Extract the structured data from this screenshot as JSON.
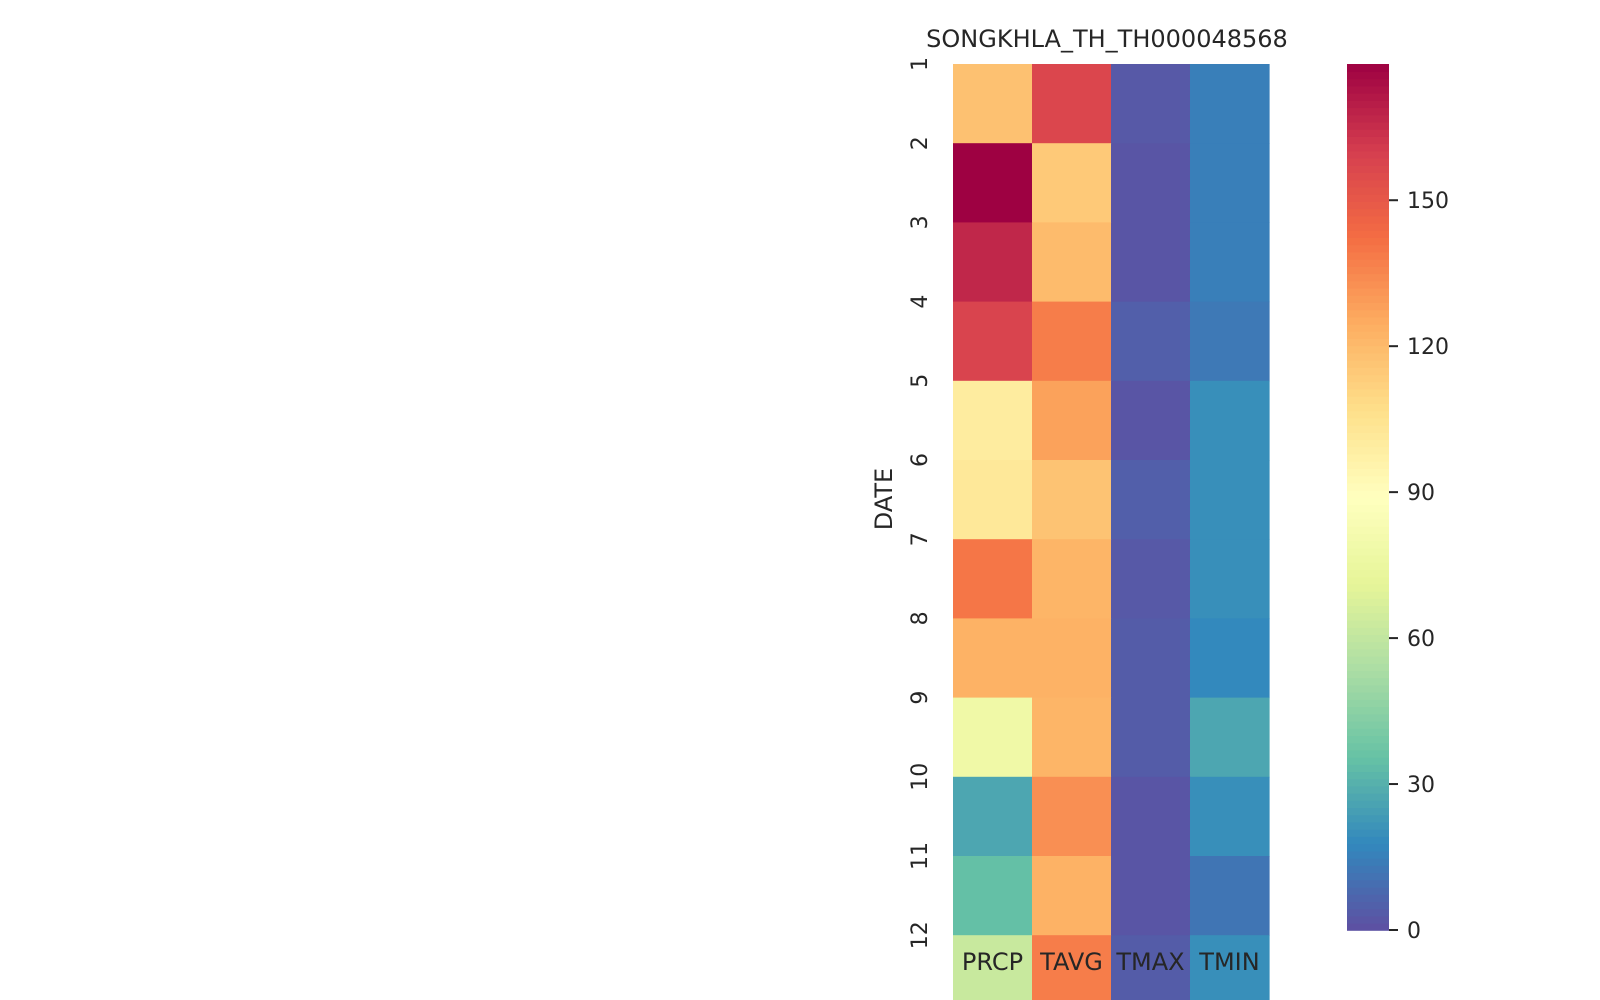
{
  "chart_data": {
    "type": "heatmap",
    "title": "SONGKHLA_TH_TH000048568",
    "ylabel": "DATE",
    "xlabel": "",
    "x_categories": [
      "PRCP",
      "TAVG",
      "TMAX",
      "TMIN"
    ],
    "y_categories": [
      "1",
      "2",
      "3",
      "4",
      "5",
      "6",
      "7",
      "8",
      "9",
      "10",
      "11",
      "12"
    ],
    "values": [
      [
        118,
        157,
        3,
        15
      ],
      [
        178,
        115,
        2,
        15
      ],
      [
        167,
        120,
        2,
        15
      ],
      [
        158,
        138,
        5,
        13
      ],
      [
        100,
        128,
        2,
        20
      ],
      [
        102,
        117,
        5,
        20
      ],
      [
        140,
        122,
        3,
        20
      ],
      [
        123,
        123,
        4,
        18
      ],
      [
        78,
        122,
        4,
        27
      ],
      [
        27,
        133,
        2,
        20
      ],
      [
        35,
        123,
        2,
        12
      ],
      [
        62,
        138,
        4,
        20
      ]
    ],
    "colorbar": {
      "colormap": "Spectral_r",
      "range": [
        0,
        178
      ],
      "ticks": [
        0,
        30,
        60,
        90,
        120,
        150
      ],
      "tick_labels": [
        "0",
        "30",
        "60",
        "90",
        "120",
        "150"
      ]
    },
    "grid": false,
    "legend": "colorbar right"
  }
}
